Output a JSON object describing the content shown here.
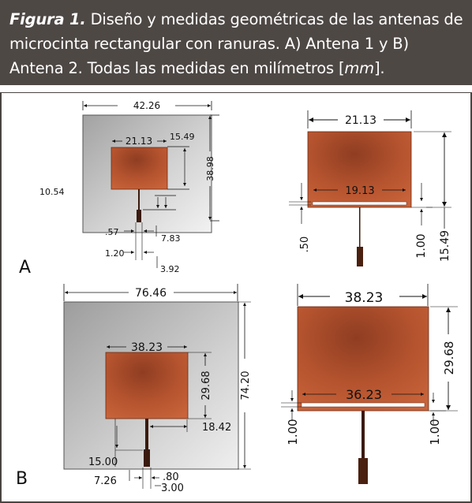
{
  "caption": {
    "figure_label": "Figura 1.",
    "text_part1": " Diseño y medidas geométricas de las antenas de microcinta rectangular con ranuras. A) Antena 1 y B) Antena 2. Todas las medidas en milímetros [",
    "unit": "mm",
    "text_part2": "]."
  },
  "panels": {
    "a": "A",
    "b": "B"
  },
  "antenna1": {
    "ground": {
      "width": "42.26",
      "height": "38.98",
      "left_offset": "10.54",
      "gap_top": "15.49"
    },
    "patch": {
      "width": "21.13"
    },
    "feed": {
      "width": ".57",
      "gap": "1.20",
      "length": "7.83",
      "inset": "3.92"
    },
    "top_view": {
      "patch_width": "21.13",
      "slot_length": "19.13",
      "slot_width": ".50",
      "slot_offset": "1.00",
      "patch_height": "15.49"
    }
  },
  "antenna2": {
    "ground": {
      "width": "76.46",
      "height": "74.20"
    },
    "patch": {
      "width": "38.23",
      "height": "29.68",
      "offset_right": "18.42"
    },
    "feed": {
      "length": "15.00",
      "offset": "7.26",
      "width": ".80",
      "gap": "3.00"
    },
    "top_view": {
      "patch_width": "38.23",
      "patch_height": "29.68",
      "slot_length": "36.23",
      "slot_width": "1.00",
      "slot_offset": "1.00"
    }
  },
  "colors": {
    "caption_bg": "#4e4845",
    "copper": "#b4532e",
    "ground": "#b3b3b3",
    "frame": "#4a4542"
  }
}
